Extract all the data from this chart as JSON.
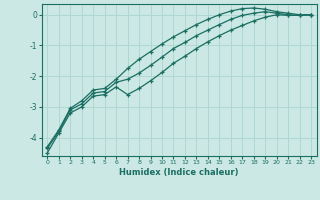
{
  "xlabel": "Humidex (Indice chaleur)",
  "bg_color": "#cce8e4",
  "grid_color": "#b0d8d2",
  "line_color": "#1a6e62",
  "xlim": [
    -0.5,
    23.5
  ],
  "ylim": [
    -4.6,
    0.35
  ],
  "xticks": [
    0,
    1,
    2,
    3,
    4,
    5,
    6,
    7,
    8,
    9,
    10,
    11,
    12,
    13,
    14,
    15,
    16,
    17,
    18,
    19,
    20,
    21,
    22,
    23
  ],
  "yticks": [
    0,
    -1,
    -2,
    -3,
    -4
  ],
  "x": [
    0,
    1,
    2,
    3,
    4,
    5,
    6,
    7,
    8,
    9,
    10,
    11,
    12,
    13,
    14,
    15,
    16,
    17,
    18,
    19,
    20,
    21,
    22,
    23
  ],
  "y_top": [
    -4.3,
    -3.75,
    -3.05,
    -2.8,
    -2.45,
    -2.4,
    -2.1,
    -1.75,
    -1.45,
    -1.2,
    -0.95,
    -0.72,
    -0.52,
    -0.32,
    -0.15,
    0.0,
    0.12,
    0.2,
    0.22,
    0.18,
    0.1,
    0.05,
    0.0,
    0.0
  ],
  "y_mid": [
    -4.35,
    -3.8,
    -3.1,
    -2.9,
    -2.55,
    -2.5,
    -2.2,
    -2.1,
    -1.9,
    -1.65,
    -1.38,
    -1.1,
    -0.9,
    -0.68,
    -0.5,
    -0.32,
    -0.15,
    -0.02,
    0.05,
    0.1,
    0.05,
    0.0,
    -0.02,
    0.0
  ],
  "y_bot": [
    -4.5,
    -3.85,
    -3.2,
    -3.0,
    -2.65,
    -2.6,
    -2.35,
    -2.6,
    -2.4,
    -2.15,
    -1.88,
    -1.58,
    -1.35,
    -1.1,
    -0.88,
    -0.68,
    -0.5,
    -0.35,
    -0.2,
    -0.08,
    0.0,
    -0.02,
    -0.02,
    0.0
  ]
}
